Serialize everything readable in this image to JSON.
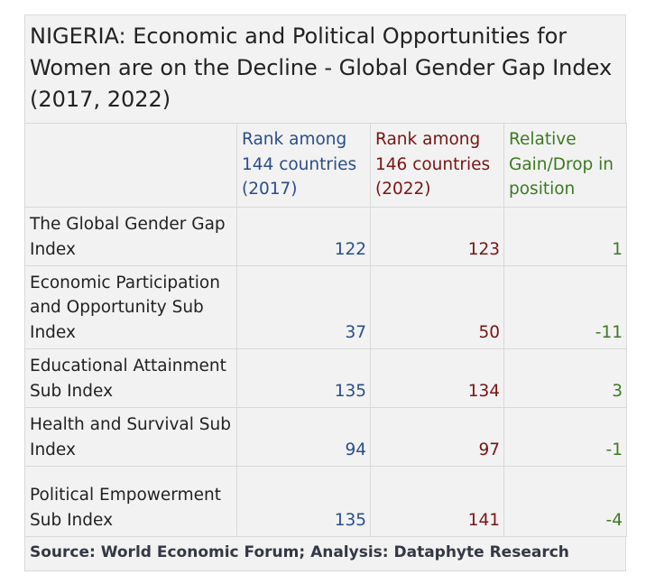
{
  "colors": {
    "col_2017": "#2a4e8a",
    "col_2022": "#7a1414",
    "col_gain": "#3c7a21",
    "background": "#f2f2f2"
  },
  "chart_data": {
    "type": "table",
    "title": "NIGERIA: Economic and Political Opportunities for Women are on the Decline - Global Gender Gap Index (2017, 2022)",
    "columns": [
      "",
      "Rank among 144 countries (2017)",
      "Rank among 146 countries (2022)",
      "Relative Gain/Drop in position"
    ],
    "rows": [
      {
        "label": "The Global Gender Gap Index",
        "rank_2017": "122",
        "rank_2022": "123",
        "change": "1"
      },
      {
        "label": "Economic Participation and Opportunity Sub Index",
        "rank_2017": "37",
        "rank_2022": "50",
        "change": "-11"
      },
      {
        "label": "Educational Attainment Sub Index",
        "rank_2017": "135",
        "rank_2022": "134",
        "change": "3"
      },
      {
        "label": "Health and Survival Sub Index",
        "rank_2017": "94",
        "rank_2022": "97",
        "change": "-1"
      },
      {
        "label": "Political Empowerment Sub Index",
        "rank_2017": "135",
        "rank_2022": "141",
        "change": "-4"
      }
    ],
    "source": "Source: World Economic Forum; Analysis: Dataphyte Research"
  }
}
